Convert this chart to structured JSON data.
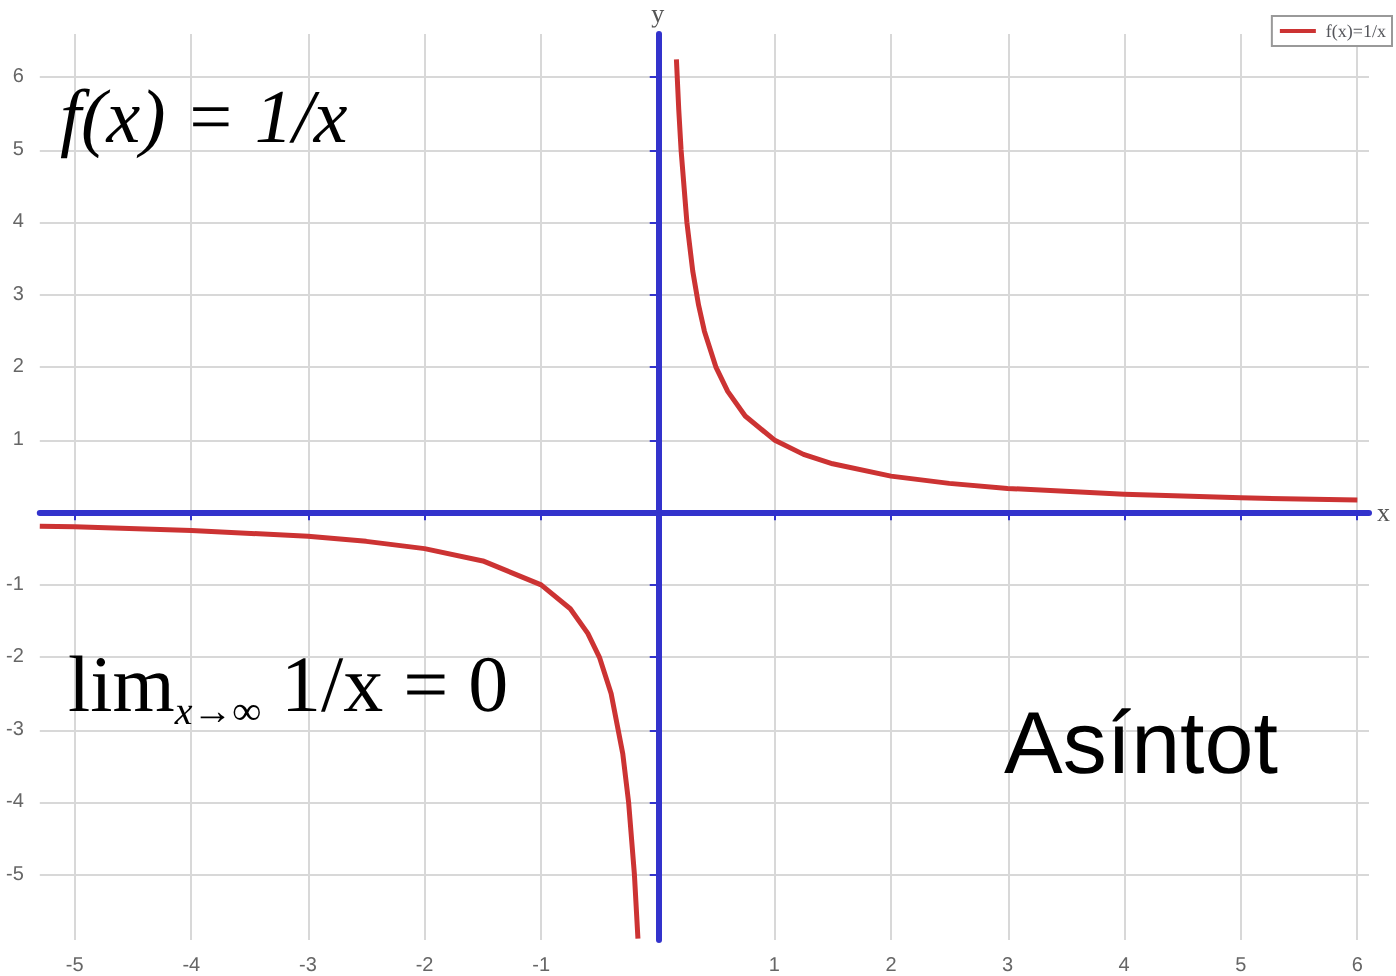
{
  "chart_data": {
    "type": "line",
    "annotations": [
      "f(x) = 1/x",
      "lim$_{x→∞}$ 1/x = 0",
      "Asíntot"
    ],
    "xlabel": "x",
    "ylabel": "y",
    "x": [
      -5.3,
      -5,
      -4,
      -3,
      -2.5,
      -2,
      -1.5,
      -1,
      -0.75,
      -0.6,
      -0.5,
      -0.4,
      -0.3,
      -0.25,
      -0.2,
      -0.17,
      0,
      0.16,
      0.18,
      0.2,
      0.25,
      0.3,
      0.35,
      0.4,
      0.5,
      0.6,
      0.75,
      1,
      1.25,
      1.5,
      2,
      2.5,
      3,
      4,
      5,
      6
    ],
    "series": [
      {
        "name": "f(x)=1/x",
        "color": "#cc3333",
        "values": [
          -0.19,
          -0.2,
          -0.25,
          -0.33,
          -0.4,
          -0.5,
          -0.67,
          -1,
          -1.33,
          -1.67,
          -2,
          -2.5,
          -3.33,
          -4,
          -5,
          -5.88,
          null,
          6.25,
          5.56,
          5,
          4,
          3.33,
          2.86,
          2.5,
          2,
          1.67,
          1.33,
          1,
          0.8,
          0.67,
          0.5,
          0.4,
          0.33,
          0.25,
          0.2,
          0.17
        ]
      }
    ],
    "xlim": [
      -5.3,
      6.1
    ],
    "ylim": [
      -5.9,
      6.6
    ],
    "xticks": [
      -5,
      -4,
      -3,
      -2,
      -1,
      {
        "value": 0,
        "label": null
      },
      1,
      2,
      3,
      4,
      5,
      6
    ],
    "yticks": [
      -5,
      -4,
      -3,
      -2,
      -1,
      {
        "value": 0,
        "label": null
      },
      1,
      2,
      3,
      4,
      5,
      6
    ],
    "grid": true,
    "legend": "top right",
    "marker": "none",
    "line_style": "solid"
  }
}
